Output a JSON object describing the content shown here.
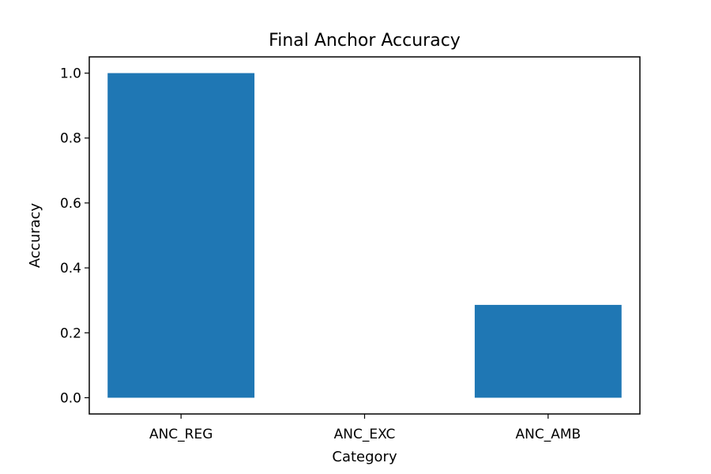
{
  "chart_data": {
    "type": "bar",
    "title": "Final Anchor Accuracy",
    "xlabel": "Category",
    "ylabel": "Accuracy",
    "categories": [
      "ANC_REG",
      "ANC_EXC",
      "ANC_AMB"
    ],
    "values": [
      1.0,
      0.0,
      0.286
    ],
    "ylim": [
      -0.05,
      1.05
    ],
    "yticks": [
      0.0,
      0.2,
      0.4,
      0.6,
      0.8,
      1.0
    ],
    "ytick_labels": [
      "0.0",
      "0.2",
      "0.4",
      "0.6",
      "0.8",
      "1.0"
    ],
    "grid": false,
    "legend": "none",
    "bar_color": "#1f77b4"
  }
}
